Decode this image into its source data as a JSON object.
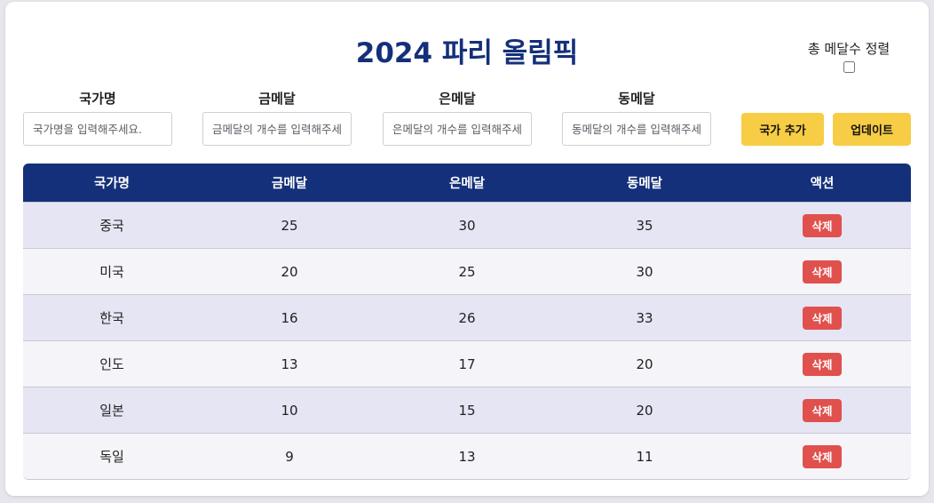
{
  "title": "2024 파리 올림픽",
  "sort": {
    "label": "총 메달수 정렬",
    "checked": false
  },
  "form": {
    "country": {
      "label": "국가명",
      "placeholder": "국가명을 입력해주세요."
    },
    "gold": {
      "label": "금메달",
      "placeholder": "금메달의 개수를 입력해주세요."
    },
    "silver": {
      "label": "은메달",
      "placeholder": "은메달의 개수를 입력해주세요."
    },
    "bronze": {
      "label": "동메달",
      "placeholder": "동메달의 개수를 입력해주세요."
    },
    "add_label": "국가 추가",
    "update_label": "업데이트"
  },
  "table": {
    "headers": [
      "국가명",
      "금메달",
      "은메달",
      "동메달",
      "액션"
    ],
    "delete_label": "삭제",
    "rows": [
      {
        "country": "중국",
        "gold": "25",
        "silver": "30",
        "bronze": "35"
      },
      {
        "country": "미국",
        "gold": "20",
        "silver": "25",
        "bronze": "30"
      },
      {
        "country": "한국",
        "gold": "16",
        "silver": "26",
        "bronze": "33"
      },
      {
        "country": "인도",
        "gold": "13",
        "silver": "17",
        "bronze": "20"
      },
      {
        "country": "일본",
        "gold": "10",
        "silver": "15",
        "bronze": "20"
      },
      {
        "country": "독일",
        "gold": "9",
        "silver": "13",
        "bronze": "11"
      }
    ]
  },
  "colors": {
    "header_bg": "#14307a",
    "button_yellow": "#f7cd45",
    "delete_red": "#e0504d",
    "row_odd": "#e5e5f4",
    "row_even": "#f4f4f9"
  }
}
